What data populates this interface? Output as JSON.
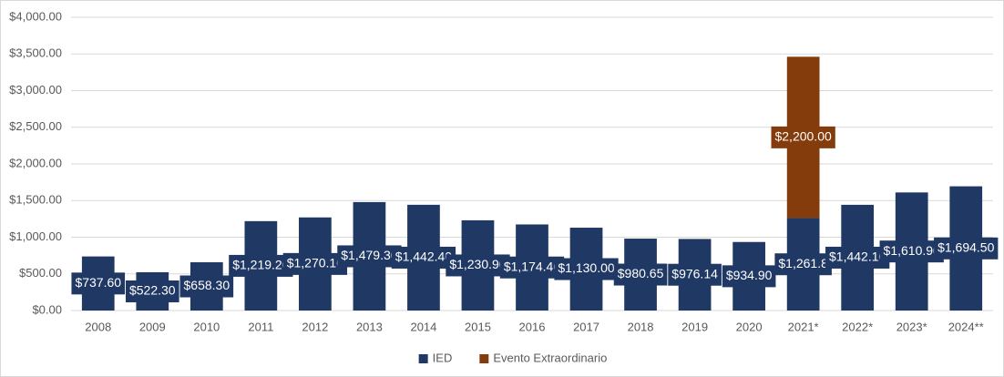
{
  "chart_data": {
    "type": "stacked_bar",
    "categories": [
      "2008",
      "2009",
      "2010",
      "2011",
      "2012",
      "2013",
      "2014",
      "2015",
      "2016",
      "2017",
      "2018",
      "2019",
      "2020",
      "2021*",
      "2022*",
      "2023*",
      "2024**"
    ],
    "series": [
      {
        "name": "IED",
        "color": "#203864",
        "values": [
          737.6,
          522.3,
          658.3,
          1219.2,
          1270.1,
          1479.3,
          1442.4,
          1230.9,
          1174.4,
          1130,
          980.65,
          976.14,
          934.9,
          1261.8,
          1442.1,
          1610.9,
          1694.5
        ],
        "value_labels": [
          "$737.60",
          "$522.30",
          "$658.30",
          "$1,219.20",
          "$1,270.10",
          "$1,479.30",
          "$1,442.40",
          "$1,230.90",
          "$1,174.40",
          "$1,130.00",
          "$980.65",
          "$976.14",
          "$934.90",
          "$1,261.8",
          "$1,442.10",
          "$1,610.90",
          "$1,694.50"
        ]
      },
      {
        "name": "Evento Extraordinario",
        "color": "#843c0c",
        "values": [
          null,
          null,
          null,
          null,
          null,
          null,
          null,
          null,
          null,
          null,
          null,
          null,
          null,
          2200,
          null,
          null,
          null
        ],
        "value_labels": [
          null,
          null,
          null,
          null,
          null,
          null,
          null,
          null,
          null,
          null,
          null,
          null,
          null,
          "$2,200.00",
          null,
          null,
          null
        ]
      }
    ],
    "ylim": [
      0,
      4000
    ],
    "yticks": [
      {
        "value": 0,
        "label": "$0.00"
      },
      {
        "value": 500,
        "label": "$500.00"
      },
      {
        "value": 1000,
        "label": "$1,000.00"
      },
      {
        "value": 1500,
        "label": "$1,500.00"
      },
      {
        "value": 2000,
        "label": "$2,000.00"
      },
      {
        "value": 2500,
        "label": "$2,500.00"
      },
      {
        "value": 3000,
        "label": "$3,000.00"
      },
      {
        "value": 3500,
        "label": "$3,500.00"
      },
      {
        "value": 4000,
        "label": "$4,000.00"
      }
    ],
    "grid": true,
    "legend": "bottom"
  }
}
